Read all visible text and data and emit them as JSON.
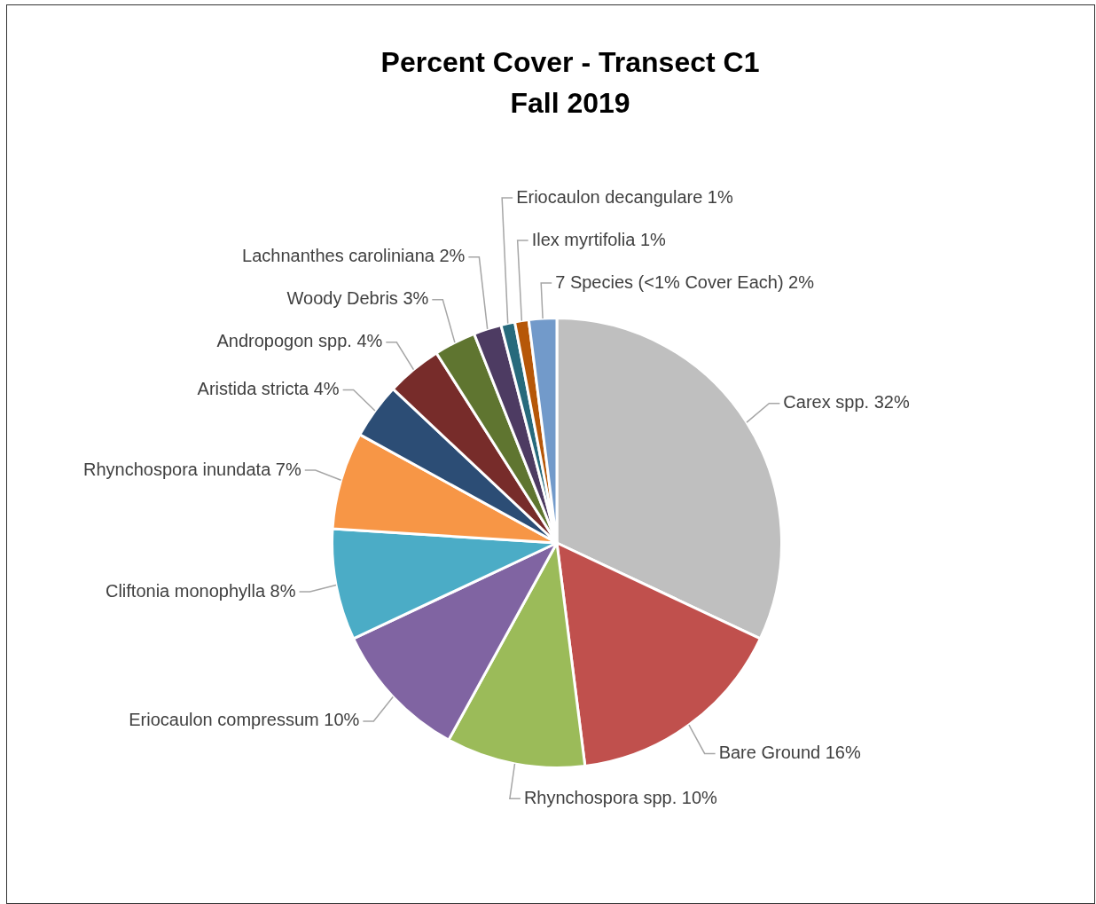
{
  "chart_data": {
    "type": "pie",
    "title": "Percent Cover - Transect C1",
    "subtitle": "Fall 2019",
    "categories": [
      "Carex spp.",
      "Bare Ground",
      "Rhynchospora spp.",
      "Eriocaulon compressum",
      "Cliftonia monophylla",
      "Rhynchospora inundata",
      "Aristida stricta",
      "Andropogon spp.",
      "Woody Debris",
      "Lachnanthes caroliniana",
      "Eriocaulon decangulare",
      "Ilex myrtifolia",
      "7 Species (<1% Cover Each)"
    ],
    "values": [
      32,
      16,
      10,
      10,
      8,
      7,
      4,
      4,
      3,
      2,
      1,
      1,
      2
    ],
    "colors": [
      "#bfbfbf",
      "#c0504d",
      "#9bbb59",
      "#8064a2",
      "#4bacc6",
      "#f79646",
      "#2c4d75",
      "#772c2a",
      "#5f7530",
      "#4d3b62",
      "#276a7c",
      "#b65708",
      "#729aca"
    ],
    "value_labels": [
      "32%",
      "16%",
      "10%",
      "10%",
      "8%",
      "7%",
      "4%",
      "4%",
      "3%",
      "2%",
      "1%",
      "1%",
      "2%"
    ],
    "legend": false
  }
}
